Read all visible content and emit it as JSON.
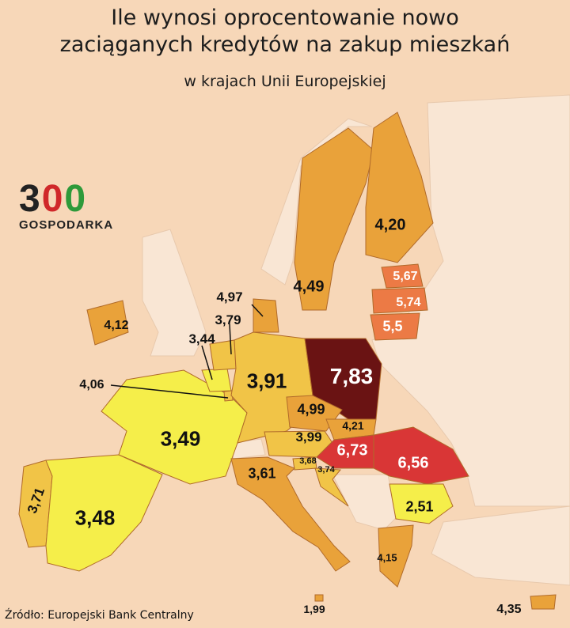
{
  "title_line1": "Ile wynosi oprocentowanie nowo",
  "title_line2": "zaciąganych kredytów na zakup mieszkań",
  "subtitle": "w krajach Unii Europejskiej",
  "logo": {
    "number": [
      "3",
      "0",
      "0"
    ],
    "name": "GOSPODARKA"
  },
  "source": "Źródło: Europejski Bank Centralny",
  "colors": {
    "background": "#f7d7b8",
    "non_eu": "#f9e6d4",
    "yellow": "#f5ee4a",
    "light_orange": "#f1c447",
    "orange": "#e9a23a",
    "dark_orange": "#ec7a45",
    "red": "#d93636",
    "dark_red": "#6a1313"
  },
  "countries": [
    {
      "name": "Finland",
      "value": "4,20"
    },
    {
      "name": "Sweden",
      "value": "4,49"
    },
    {
      "name": "Estonia",
      "value": "5,67"
    },
    {
      "name": "Latvia",
      "value": "5,74"
    },
    {
      "name": "Lithuania",
      "value": "5,5"
    },
    {
      "name": "Ireland",
      "value": "4,12"
    },
    {
      "name": "Denmark",
      "value": "4,97"
    },
    {
      "name": "Netherlands",
      "value": "3,79"
    },
    {
      "name": "Belgium",
      "value": "3,44"
    },
    {
      "name": "Luxembourg",
      "value": "4,06"
    },
    {
      "name": "Germany",
      "value": "3,91"
    },
    {
      "name": "Poland",
      "value": "7,83"
    },
    {
      "name": "Czechia",
      "value": "4,99"
    },
    {
      "name": "Slovakia",
      "value": "4,21"
    },
    {
      "name": "Austria",
      "value": "3,99"
    },
    {
      "name": "Hungary",
      "value": "6,73"
    },
    {
      "name": "Romania",
      "value": "6,56"
    },
    {
      "name": "France",
      "value": "3,49"
    },
    {
      "name": "Slovenia",
      "value": "3,68"
    },
    {
      "name": "Croatia",
      "value": "3,74"
    },
    {
      "name": "Italy",
      "value": "3,61"
    },
    {
      "name": "Bulgaria",
      "value": "2,51"
    },
    {
      "name": "Portugal",
      "value": "3,71"
    },
    {
      "name": "Spain",
      "value": "3,48"
    },
    {
      "name": "Greece",
      "value": "4,15"
    },
    {
      "name": "Malta",
      "value": "1,99"
    },
    {
      "name": "Cyprus",
      "value": "4,35"
    }
  ]
}
